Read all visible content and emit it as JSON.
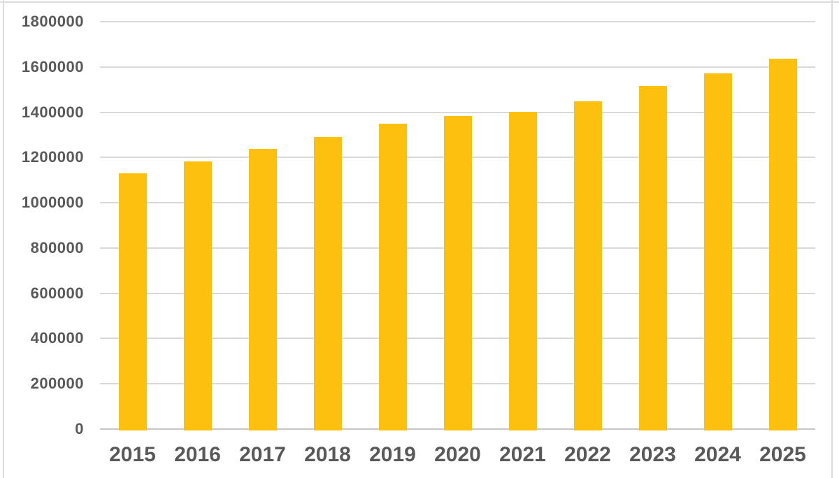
{
  "chart_data": {
    "type": "bar",
    "title": "",
    "xlabel": "",
    "ylabel": "",
    "categories": [
      "2015",
      "2016",
      "2017",
      "2018",
      "2019",
      "2020",
      "2021",
      "2022",
      "2023",
      "2024",
      "2025"
    ],
    "values": [
      1130000,
      1181000,
      1237000,
      1291000,
      1350000,
      1384000,
      1401000,
      1449000,
      1517000,
      1572000,
      1636000
    ],
    "ylim": [
      0,
      1800000
    ],
    "ytick_interval": 200000,
    "y_tick_labels": [
      "0",
      "200000",
      "400000",
      "600000",
      "800000",
      "1000000",
      "1200000",
      "1400000",
      "1600000",
      "1800000"
    ],
    "grid": true,
    "legend": false
  },
  "colors": {
    "bar": "#FDC00E",
    "gridline": "#D9D9D9",
    "axis_line": "#C6C6C6",
    "tick_text": "#595959",
    "background": "#FFFFFF",
    "frame_border": "#DCDCDC"
  }
}
